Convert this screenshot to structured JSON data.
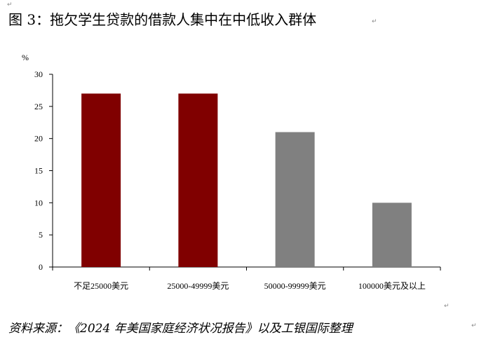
{
  "figure_title": "图 3：拖欠学生贷款的借款人集中在中低收入群体",
  "source_note": "资料来源：《2024 年美国家庭经济状况报告》以及工银国际整理",
  "chart_data": {
    "type": "bar",
    "title": "",
    "ylabel": "%",
    "xlabel": "",
    "categories": [
      "不足25000美元",
      "25000-49999美元",
      "50000-99999美元",
      "100000美元及以上"
    ],
    "values": [
      27,
      27,
      21,
      10
    ],
    "ylim": [
      0,
      30
    ],
    "yticks": [
      0,
      5,
      10,
      15,
      20,
      25,
      30
    ],
    "colors": [
      "#800000",
      "#800000",
      "#808080",
      "#808080"
    ],
    "grid": false,
    "legend": "none"
  }
}
